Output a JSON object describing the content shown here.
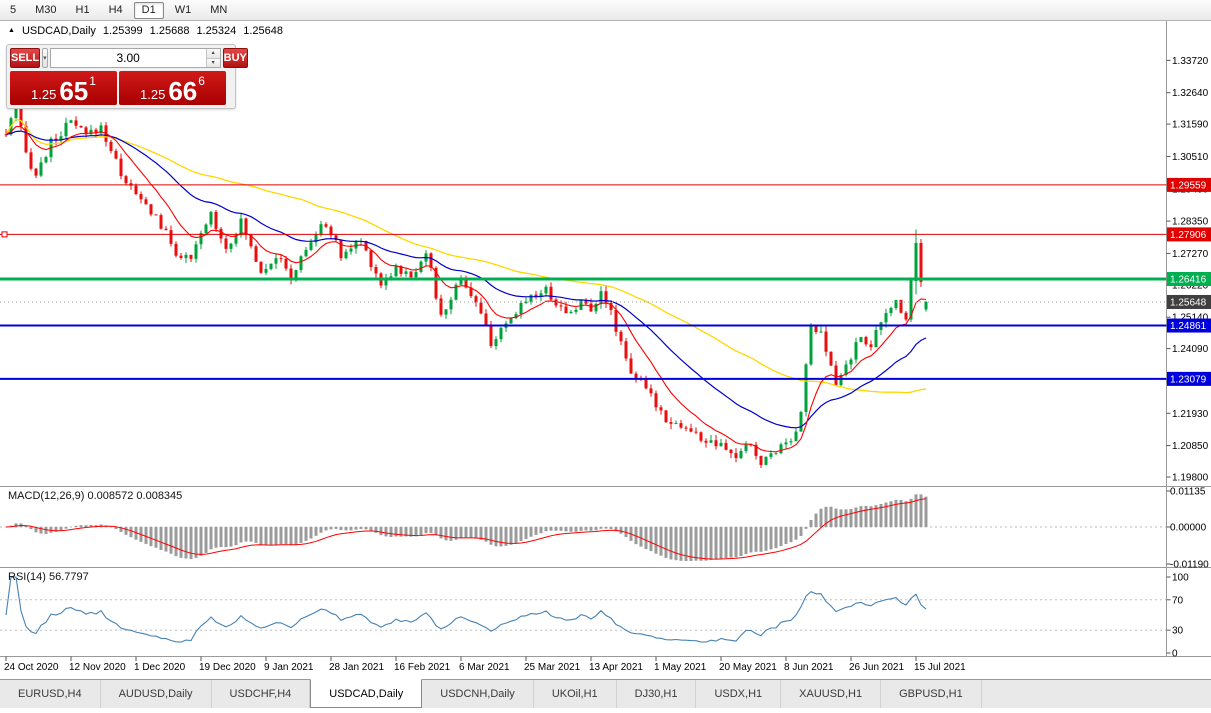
{
  "toolbar": {
    "timeframes": [
      "5",
      "M30",
      "H1",
      "H4",
      "D1",
      "W1",
      "MN"
    ],
    "active": "D1"
  },
  "chart_header": {
    "collapse_icon": "▲",
    "symbol": "USDCAD,Daily",
    "open": "1.25399",
    "high": "1.25688",
    "low": "1.25324",
    "close": "1.25648"
  },
  "one_click": {
    "sell_label": "SELL",
    "buy_label": "BUY",
    "volume": "3.00",
    "sell_price_base": "1.25",
    "sell_price_big": "65",
    "sell_price_sup": "1",
    "buy_price_base": "1.25",
    "buy_price_big": "66",
    "buy_price_sup": "6"
  },
  "indicators": {
    "macd_label": "MACD(12,26,9) 0.008572 0.008345",
    "rsi_label": "RSI(14) 56.7797"
  },
  "tabs": {
    "items": [
      "EURUSD,H4",
      "AUDUSD,Daily",
      "USDCHF,H4",
      "USDCAD,Daily",
      "USDCNH,Daily",
      "UKOil,H1",
      "DJ30,H1",
      "USDX,H1",
      "XAUUSD,H1",
      "GBPUSD,H1"
    ],
    "active_index": 3
  },
  "chart_data": {
    "type": "candlestick",
    "symbol": "USDCAD",
    "timeframe": "Daily",
    "candle_count": 185,
    "last_candle": {
      "open": 1.25399,
      "high": 1.25688,
      "low": 1.25324,
      "close": 1.25648
    },
    "x_axis_labels": [
      "24 Oct 2020",
      "12 Nov 2020",
      "1 Dec 2020",
      "19 Dec 2020",
      "9 Jan 2021",
      "28 Jan 2021",
      "16 Feb 2021",
      "6 Mar 2021",
      "25 Mar 2021",
      "13 Apr 2021",
      "1 May 2021",
      "20 May 2021",
      "8 Jun 2021",
      "26 Jun 2021",
      "15 Jul 2021"
    ],
    "label_spacing_candles": 13,
    "y_axis_labels": [
      "1.33720",
      "1.32640",
      "1.31590",
      "1.30510",
      "1.29430",
      "1.28350",
      "1.27270",
      "1.26220",
      "1.25140",
      "1.24090",
      "1.23010",
      "1.21930",
      "1.20850",
      "1.19800"
    ],
    "price_range": {
      "top": 1.342,
      "bottom": 1.195
    },
    "levels": [
      {
        "price": 1.29559,
        "label": "1.29559",
        "color": "#e00000",
        "width": 1,
        "handle": false
      },
      {
        "price": 1.27906,
        "label": "1.27906",
        "color": "#e00000",
        "width": 1,
        "handle": true
      },
      {
        "price": 1.26416,
        "label": "1.26416",
        "color": "#00b050",
        "width": 3,
        "handle": false
      },
      {
        "price": 1.24861,
        "label": "1.24861",
        "color": "#0000dd",
        "width": 2,
        "handle": false
      },
      {
        "price": 1.23079,
        "label": "1.23079",
        "color": "#0000dd",
        "width": 2,
        "handle": false
      }
    ],
    "current_price": {
      "value": 1.25648,
      "label": "1.25648",
      "color": "#3f3f3f"
    },
    "price_path_anchors": [
      [
        0,
        1.3125
      ],
      [
        2,
        1.3215
      ],
      [
        4,
        1.306
      ],
      [
        6,
        1.299
      ],
      [
        9,
        1.3095
      ],
      [
        13,
        1.3165
      ],
      [
        16,
        1.312
      ],
      [
        19,
        1.315
      ],
      [
        23,
        1.2995
      ],
      [
        26,
        1.292
      ],
      [
        30,
        1.285
      ],
      [
        34,
        1.273
      ],
      [
        37,
        1.27
      ],
      [
        39,
        1.279
      ],
      [
        41,
        1.286
      ],
      [
        44,
        1.2745
      ],
      [
        47,
        1.283
      ],
      [
        51,
        1.267
      ],
      [
        54,
        1.272
      ],
      [
        57,
        1.2645
      ],
      [
        61,
        1.277
      ],
      [
        64,
        1.283
      ],
      [
        67,
        1.272
      ],
      [
        71,
        1.277
      ],
      [
        75,
        1.2625
      ],
      [
        78,
        1.268
      ],
      [
        81,
        1.2645
      ],
      [
        84,
        1.274
      ],
      [
        87,
        1.251
      ],
      [
        91,
        1.265
      ],
      [
        94,
        1.256
      ],
      [
        97,
        1.2432
      ],
      [
        100,
        1.2478
      ],
      [
        104,
        1.258
      ],
      [
        108,
        1.2605
      ],
      [
        112,
        1.2525
      ],
      [
        115,
        1.2565
      ],
      [
        117,
        1.2535
      ],
      [
        119,
        1.2612
      ],
      [
        122,
        1.248
      ],
      [
        125,
        1.2335
      ],
      [
        129,
        1.2248
      ],
      [
        132,
        1.2178
      ],
      [
        136,
        1.2142
      ],
      [
        139,
        1.2108
      ],
      [
        143,
        1.2078
      ],
      [
        146,
        1.2048
      ],
      [
        149,
        1.2092
      ],
      [
        151,
        1.2018
      ],
      [
        153,
        1.2062
      ],
      [
        156,
        1.2096
      ],
      [
        158,
        1.2135
      ],
      [
        159,
        1.221
      ],
      [
        161,
        1.248
      ],
      [
        163,
        1.2452
      ],
      [
        166,
        1.2288
      ],
      [
        169,
        1.2385
      ],
      [
        171,
        1.2448
      ],
      [
        173,
        1.2425
      ],
      [
        176,
        1.2522
      ],
      [
        178,
        1.2568
      ],
      [
        180,
        1.2515
      ],
      [
        182,
        1.2762
      ],
      [
        184,
        1.2565
      ]
    ],
    "candle_overrides": [
      [
        182,
        1.2635,
        1.2807,
        1.259,
        1.2762
      ],
      [
        183,
        1.2762,
        1.2775,
        1.2615,
        1.2632
      ],
      [
        184,
        1.25399,
        1.25688,
        1.25324,
        1.25648
      ]
    ],
    "macd_axis": [
      "0.01135",
      "0.00000",
      "-0.01190"
    ],
    "rsi_axis": [
      "100",
      "70",
      "30",
      "0"
    ],
    "rsi_levels": [
      70,
      30
    ],
    "colors": {
      "up": "#00a23c",
      "down": "#ea0e0e",
      "ma_fast": "#ff0000",
      "ma_mid": "#0000cd",
      "ma_slow": "#ffd700",
      "macd_hist": "#9b9b9b",
      "macd_signal": "#ff0000",
      "rsi": "#4682b4",
      "axis_text": "#000000",
      "grid_line": "#9a9a9a"
    }
  }
}
